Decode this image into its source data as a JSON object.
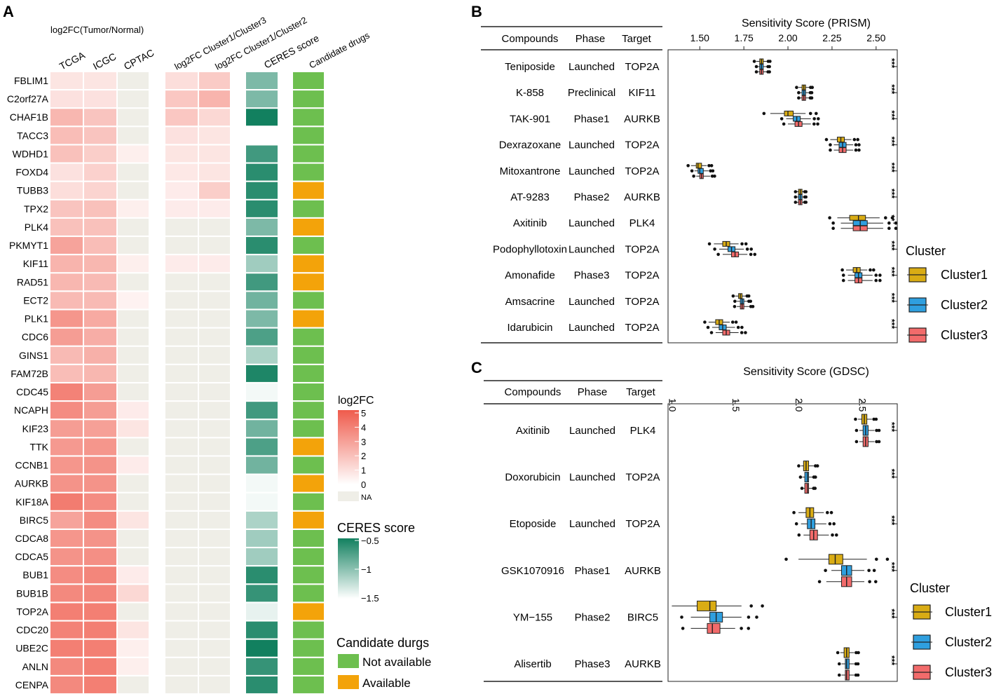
{
  "panel_labels": [
    "A",
    "B",
    "C"
  ],
  "colors": {
    "log2fc_low": "#ffffff",
    "log2fc_high": "#ef5b4c",
    "na": "#efeee7",
    "ceres_low": "#ffffff",
    "ceres_high": "#12805f",
    "not_available": "#6dbf4f",
    "available": "#f3a30a",
    "cluster1": "#d9ac14",
    "cluster2": "#2f9fdf",
    "cluster3": "#f26b6b"
  },
  "chart_data": [
    {
      "type": "heatmap",
      "panel": "A",
      "group_labels": {
        "tumor_normal": "log2FC(Tumor/Normal)",
        "cluster3_fc": "log2FC Cluster1/Cluster3",
        "cluster2_fc": "log2FC Cluster1/Cluster2",
        "ceres": "CERES score",
        "drugs": "Candidate drugs"
      },
      "columns": [
        "TCGA",
        "ICGC",
        "CPTAC"
      ],
      "genes": [
        "FBLIM1",
        "C2orf27A",
        "CHAF1B",
        "TACC3",
        "WDHD1",
        "FOXD4",
        "TUBB3",
        "TPX2",
        "PLK4",
        "PKMYT1",
        "KIF11",
        "RAD51",
        "ECT2",
        "PLK1",
        "CDC6",
        "GINS1",
        "FAM72B",
        "CDC45",
        "NCAPH",
        "KIF23",
        "TTK",
        "CCNB1",
        "AURKB",
        "KIF18A",
        "BIRC5",
        "CDCA8",
        "CDCA5",
        "BUB1",
        "BUB1B",
        "TOP2A",
        "CDC20",
        "UBE2C",
        "ANLN",
        "CENPA"
      ],
      "tcga": [
        0.8,
        0.9,
        2.2,
        2.0,
        1.9,
        0.9,
        1.0,
        1.8,
        1.9,
        2.8,
        2.3,
        2.2,
        2.1,
        3.2,
        3.0,
        2.1,
        2.0,
        3.8,
        3.5,
        3.0,
        3.1,
        3.2,
        3.3,
        4.0,
        2.8,
        3.2,
        3.3,
        3.5,
        3.6,
        3.9,
        3.8,
        3.9,
        3.6,
        3.6
      ],
      "icgc": [
        0.8,
        0.9,
        1.8,
        1.8,
        1.5,
        1.4,
        1.3,
        1.9,
        1.9,
        2.0,
        2.2,
        2.1,
        2.1,
        2.6,
        2.5,
        2.4,
        2.2,
        3.0,
        3.0,
        2.9,
        3.2,
        3.3,
        3.3,
        3.5,
        3.5,
        3.3,
        3.4,
        3.7,
        3.7,
        3.9,
        3.9,
        3.9,
        3.9,
        3.9
      ],
      "cptac": [
        null,
        null,
        null,
        null,
        0.5,
        null,
        null,
        0.5,
        null,
        null,
        0.5,
        null,
        0.4,
        null,
        null,
        null,
        null,
        null,
        0.6,
        0.8,
        null,
        0.6,
        null,
        null,
        0.8,
        null,
        null,
        0.6,
        1.2,
        null,
        0.8,
        0.5,
        0.5,
        null
      ],
      "fc_cluster1_cluster3": [
        1.0,
        1.7,
        1.7,
        0.9,
        0.8,
        0.7,
        0.6,
        0.6,
        null,
        null,
        0.6,
        null,
        null,
        null,
        null,
        null,
        null,
        null,
        null,
        null,
        null,
        null,
        null,
        null,
        null,
        null,
        null,
        null,
        null,
        null,
        null,
        null,
        null,
        null
      ],
      "fc_cluster1_cluster2": [
        1.6,
        2.3,
        1.2,
        0.8,
        0.8,
        0.8,
        1.5,
        0.6,
        null,
        null,
        0.6,
        null,
        null,
        null,
        null,
        null,
        null,
        null,
        null,
        null,
        null,
        null,
        null,
        null,
        null,
        null,
        null,
        null,
        null,
        null,
        null,
        null,
        null,
        null
      ],
      "ceres_score": [
        -0.95,
        -0.95,
        -0.5,
        null,
        -0.7,
        -0.6,
        -0.6,
        -0.6,
        -0.95,
        -0.6,
        -1.1,
        -0.7,
        -0.9,
        -0.95,
        -0.75,
        -1.15,
        -0.55,
        -1.45,
        -0.7,
        -0.9,
        -0.75,
        -0.9,
        -1.45,
        -1.45,
        -1.15,
        -1.1,
        -1.1,
        -0.6,
        -0.65,
        -1.4,
        -0.6,
        -0.5,
        -0.65,
        -0.6
      ],
      "candidate_drugs": [
        "Not available",
        "Not available",
        "Not available",
        "Not available",
        "Not available",
        "Not available",
        "Available",
        "Not available",
        "Available",
        "Not available",
        "Available",
        "Available",
        "Not available",
        "Available",
        "Not available",
        "Not available",
        "Not available",
        "Not available",
        "Not available",
        "Not available",
        "Available",
        "Not available",
        "Available",
        "Not available",
        "Available",
        "Not available",
        "Not available",
        "Not available",
        "Not available",
        "Available",
        "Not available",
        "Not available",
        "Not available",
        "Not available"
      ],
      "legend_log2fc": {
        "title": "log2FC",
        "ticks": [
          "5",
          "4",
          "3",
          "2",
          "1",
          "0"
        ],
        "na_label": "NA",
        "range": [
          0,
          5
        ]
      },
      "legend_ceres": {
        "title": "CERES score",
        "ticks": [
          "−0.5",
          "−1",
          "−1.5"
        ],
        "range": [
          -1.5,
          -0.5
        ]
      },
      "legend_drugs": {
        "title": "Candidate durgs",
        "items": [
          "Not available",
          "Available"
        ]
      }
    },
    {
      "type": "box",
      "panel": "B",
      "title": "Sensitivity Score (PRISM)",
      "headers": [
        "Compounds",
        "Phase",
        "Target"
      ],
      "xlim": [
        1.32,
        2.62
      ],
      "xticks": [
        "1.50",
        "1.75",
        "2.00",
        "2.25",
        "2.50"
      ],
      "series_names": [
        "Cluster1",
        "Cluster2",
        "Cluster3"
      ],
      "rows": [
        {
          "compound": "Teniposide",
          "phase": "Launched",
          "target": "TOP2A",
          "sig": "***",
          "boxes": [
            [
              1.82,
              1.84,
              1.85,
              1.86,
              1.88
            ],
            [
              1.83,
              1.84,
              1.85,
              1.86,
              1.88
            ],
            [
              1.83,
              1.84,
              1.85,
              1.86,
              1.88
            ]
          ]
        },
        {
          "compound": "K-858",
          "phase": "Preclinical",
          "target": "KIF11",
          "sig": "***",
          "boxes": [
            [
              2.06,
              2.08,
              2.09,
              2.1,
              2.12
            ],
            [
              2.07,
              2.08,
              2.09,
              2.1,
              2.12
            ],
            [
              2.07,
              2.08,
              2.09,
              2.1,
              2.12
            ]
          ]
        },
        {
          "compound": "TAK-901",
          "phase": "Phase1",
          "target": "AURKB",
          "sig": "***",
          "boxes": [
            [
              1.9,
              1.98,
              2.0,
              2.03,
              2.1
            ],
            [
              1.99,
              2.03,
              2.05,
              2.07,
              2.13
            ],
            [
              2.0,
              2.04,
              2.06,
              2.08,
              2.13
            ]
          ]
        },
        {
          "compound": "Dexrazoxane",
          "phase": "Launched",
          "target": "TOP2A",
          "sig": "***",
          "boxes": [
            [
              2.24,
              2.28,
              2.3,
              2.32,
              2.36
            ],
            [
              2.26,
              2.29,
              2.31,
              2.33,
              2.37
            ],
            [
              2.26,
              2.29,
              2.31,
              2.33,
              2.37
            ]
          ]
        },
        {
          "compound": "Mitoxantrone",
          "phase": "Launched",
          "target": "TOP2A",
          "sig": "***",
          "boxes": [
            [
              1.45,
              1.48,
              1.49,
              1.51,
              1.54
            ],
            [
              1.47,
              1.49,
              1.5,
              1.52,
              1.55
            ],
            [
              1.48,
              1.5,
              1.51,
              1.52,
              1.56
            ]
          ]
        },
        {
          "compound": "AT-9283",
          "phase": "Phase2",
          "target": "AURKB",
          "sig": "***",
          "boxes": [
            [
              2.05,
              2.06,
              2.07,
              2.08,
              2.09
            ],
            [
              2.05,
              2.06,
              2.07,
              2.08,
              2.09
            ],
            [
              2.05,
              2.06,
              2.07,
              2.08,
              2.09
            ]
          ]
        },
        {
          "compound": "Axitinib",
          "phase": "Launched",
          "target": "PLK4",
          "sig": "**",
          "boxes": [
            [
              2.28,
              2.35,
              2.4,
              2.44,
              2.52
            ],
            [
              2.3,
              2.37,
              2.41,
              2.45,
              2.54
            ],
            [
              2.3,
              2.37,
              2.41,
              2.45,
              2.54
            ]
          ]
        },
        {
          "compound": "Podophyllotoxin",
          "phase": "Launched",
          "target": "TOP2A",
          "sig": "***",
          "boxes": [
            [
              1.58,
              1.63,
              1.65,
              1.67,
              1.72
            ],
            [
              1.61,
              1.66,
              1.68,
              1.7,
              1.75
            ],
            [
              1.63,
              1.68,
              1.7,
              1.72,
              1.77
            ]
          ]
        },
        {
          "compound": "Amonafide",
          "phase": "Phase3",
          "target": "TOP2A",
          "sig": "***",
          "boxes": [
            [
              2.33,
              2.37,
              2.39,
              2.41,
              2.45
            ],
            [
              2.34,
              2.38,
              2.4,
              2.42,
              2.48
            ],
            [
              2.34,
              2.38,
              2.4,
              2.42,
              2.48
            ]
          ]
        },
        {
          "compound": "Amsacrine",
          "phase": "Launched",
          "target": "TOP2A",
          "sig": "***",
          "boxes": [
            [
              1.7,
              1.72,
              1.73,
              1.74,
              1.76
            ],
            [
              1.71,
              1.73,
              1.74,
              1.75,
              1.77
            ],
            [
              1.71,
              1.73,
              1.74,
              1.75,
              1.78
            ]
          ]
        },
        {
          "compound": "Idarubicin",
          "phase": "Launched",
          "target": "TOP2A",
          "sig": "***",
          "boxes": [
            [
              1.55,
              1.59,
              1.61,
              1.63,
              1.67
            ],
            [
              1.57,
              1.61,
              1.63,
              1.65,
              1.7
            ],
            [
              1.59,
              1.63,
              1.65,
              1.67,
              1.72
            ]
          ]
        }
      ]
    },
    {
      "type": "box",
      "panel": "C",
      "title": "Sensitivity Score (GDSC)",
      "headers": [
        "Compounds",
        "Phase",
        "Target"
      ],
      "xlim": [
        0.97,
        2.78
      ],
      "xticks": [
        "1.0",
        "1.5",
        "2.0",
        "2.5"
      ],
      "series_names": [
        "Cluster1",
        "Cluster2",
        "Cluster3"
      ],
      "rows": [
        {
          "compound": "Axitinib",
          "phase": "Launched",
          "target": "PLK4",
          "sig": "***",
          "boxes": [
            [
              2.47,
              2.5,
              2.52,
              2.54,
              2.58
            ],
            [
              2.48,
              2.51,
              2.53,
              2.55,
              2.6
            ],
            [
              2.48,
              2.51,
              2.53,
              2.55,
              2.6
            ]
          ]
        },
        {
          "compound": "Doxorubicin",
          "phase": "Launched",
          "target": "TOP2A",
          "sig": "***",
          "boxes": [
            [
              2.02,
              2.04,
              2.06,
              2.08,
              2.12
            ],
            [
              2.03,
              2.05,
              2.07,
              2.08,
              2.11
            ],
            [
              2.04,
              2.05,
              2.07,
              2.08,
              2.11
            ]
          ]
        },
        {
          "compound": "Etoposide",
          "phase": "Launched",
          "target": "TOP2A",
          "sig": "***",
          "boxes": [
            [
              2.0,
              2.06,
              2.09,
              2.12,
              2.2
            ],
            [
              2.02,
              2.07,
              2.1,
              2.13,
              2.22
            ],
            [
              2.04,
              2.09,
              2.12,
              2.15,
              2.24
            ]
          ]
        },
        {
          "compound": "GSK1070916",
          "phase": "Phase1",
          "target": "AURKB",
          "sig": "***",
          "boxes": [
            [
              2.0,
              2.24,
              2.29,
              2.35,
              2.54
            ],
            [
              2.26,
              2.34,
              2.38,
              2.42,
              2.52
            ],
            [
              2.22,
              2.34,
              2.38,
              2.42,
              2.52
            ]
          ]
        },
        {
          "compound": "YM−155",
          "phase": "Phase2",
          "target": "BIRC5",
          "sig": "***",
          "boxes": [
            [
              1.0,
              1.2,
              1.3,
              1.35,
              1.55
            ],
            [
              1.15,
              1.3,
              1.35,
              1.4,
              1.55
            ],
            [
              1.15,
              1.28,
              1.32,
              1.38,
              1.5
            ]
          ]
        },
        {
          "compound": "Alisertib",
          "phase": "Phase3",
          "target": "AURKB",
          "sig": "***",
          "boxes": [
            [
              2.33,
              2.36,
              2.38,
              2.4,
              2.44
            ],
            [
              2.34,
              2.37,
              2.38,
              2.4,
              2.44
            ],
            [
              2.34,
              2.37,
              2.38,
              2.4,
              2.44
            ]
          ]
        }
      ]
    }
  ],
  "legend_cluster": {
    "title": "Cluster",
    "items": [
      "Cluster1",
      "Cluster2",
      "Cluster3"
    ]
  }
}
